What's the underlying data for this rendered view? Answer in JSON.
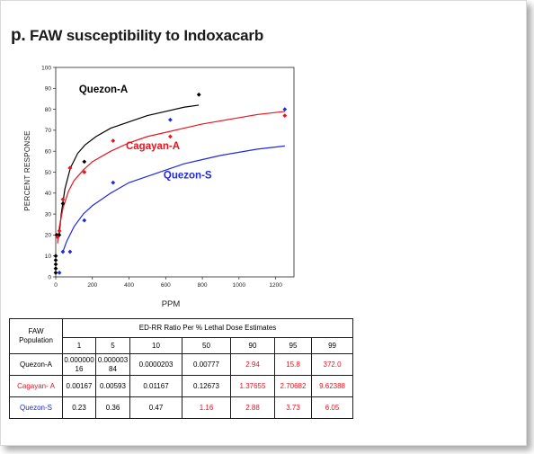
{
  "title": {
    "prefix": "p.",
    "text": "FAW susceptibility to Indoxacarb"
  },
  "colors": {
    "quezon_a": "#000000",
    "cagayan_a": "#e8141e",
    "quezon_s": "#1e2adc"
  },
  "chart_data": {
    "type": "scatter",
    "xlabel": "PPM",
    "ylabel": "PERCENT RESPONSE",
    "xlim": [
      0,
      1300
    ],
    "ylim": [
      0,
      100
    ],
    "xticks": [
      0,
      200,
      400,
      600,
      800,
      1000,
      1200
    ],
    "yticks": [
      0,
      10,
      20,
      30,
      40,
      50,
      60,
      70,
      80,
      90,
      100
    ],
    "grid": false,
    "series": [
      {
        "name": "Quezon-A",
        "color": "#000000",
        "points": [
          {
            "x": 0,
            "y": 2
          },
          {
            "x": 0,
            "y": 4
          },
          {
            "x": 0,
            "y": 6
          },
          {
            "x": 0,
            "y": 8
          },
          {
            "x": 0,
            "y": 10
          },
          {
            "x": 5,
            "y": 20
          },
          {
            "x": 19,
            "y": 20
          },
          {
            "x": 39,
            "y": 35
          },
          {
            "x": 78,
            "y": 52
          },
          {
            "x": 156,
            "y": 55
          },
          {
            "x": 781,
            "y": 87
          }
        ],
        "curve": [
          {
            "x": 19,
            "y": 20
          },
          {
            "x": 30,
            "y": 30
          },
          {
            "x": 50,
            "y": 42
          },
          {
            "x": 80,
            "y": 52
          },
          {
            "x": 120,
            "y": 59
          },
          {
            "x": 160,
            "y": 63
          },
          {
            "x": 220,
            "y": 67
          },
          {
            "x": 300,
            "y": 71
          },
          {
            "x": 400,
            "y": 74
          },
          {
            "x": 500,
            "y": 77
          },
          {
            "x": 600,
            "y": 79
          },
          {
            "x": 700,
            "y": 81
          },
          {
            "x": 781,
            "y": 82
          }
        ]
      },
      {
        "name": "Cagayan-A",
        "color": "#e8141e",
        "points": [
          {
            "x": 10,
            "y": 19
          },
          {
            "x": 20,
            "y": 22
          },
          {
            "x": 39,
            "y": 37
          },
          {
            "x": 78,
            "y": 52
          },
          {
            "x": 156,
            "y": 50
          },
          {
            "x": 313,
            "y": 65
          },
          {
            "x": 625,
            "y": 67
          },
          {
            "x": 1250,
            "y": 77
          }
        ],
        "curve": [
          {
            "x": 10,
            "y": 16
          },
          {
            "x": 20,
            "y": 24
          },
          {
            "x": 40,
            "y": 33
          },
          {
            "x": 70,
            "y": 41
          },
          {
            "x": 100,
            "y": 46
          },
          {
            "x": 150,
            "y": 51
          },
          {
            "x": 200,
            "y": 55
          },
          {
            "x": 300,
            "y": 60
          },
          {
            "x": 400,
            "y": 64
          },
          {
            "x": 500,
            "y": 67
          },
          {
            "x": 600,
            "y": 69
          },
          {
            "x": 700,
            "y": 71
          },
          {
            "x": 800,
            "y": 73
          },
          {
            "x": 900,
            "y": 74.5
          },
          {
            "x": 1000,
            "y": 76
          },
          {
            "x": 1100,
            "y": 77.5
          },
          {
            "x": 1250,
            "y": 79
          }
        ]
      },
      {
        "name": "Quezon-S",
        "color": "#1e2adc",
        "points": [
          {
            "x": 20,
            "y": 2
          },
          {
            "x": 39,
            "y": 12
          },
          {
            "x": 78,
            "y": 12
          },
          {
            "x": 156,
            "y": 27
          },
          {
            "x": 313,
            "y": 45
          },
          {
            "x": 625,
            "y": 75
          },
          {
            "x": 1250,
            "y": 80
          }
        ],
        "curve": [
          {
            "x": 39,
            "y": 12
          },
          {
            "x": 60,
            "y": 17
          },
          {
            "x": 100,
            "y": 24
          },
          {
            "x": 150,
            "y": 30
          },
          {
            "x": 200,
            "y": 34
          },
          {
            "x": 300,
            "y": 40
          },
          {
            "x": 400,
            "y": 45
          },
          {
            "x": 500,
            "y": 48
          },
          {
            "x": 600,
            "y": 51
          },
          {
            "x": 700,
            "y": 54
          },
          {
            "x": 800,
            "y": 56
          },
          {
            "x": 900,
            "y": 58
          },
          {
            "x": 1000,
            "y": 59.5
          },
          {
            "x": 1100,
            "y": 61
          },
          {
            "x": 1250,
            "y": 62.5
          }
        ]
      }
    ],
    "annotations": [
      {
        "text": "Quezon-A",
        "x": 260,
        "y": 88,
        "color": "#000000"
      },
      {
        "text": "Cagayan-A",
        "x": 530,
        "y": 61,
        "color": "#e8141e"
      },
      {
        "text": "Quezon-S",
        "x": 720,
        "y": 47,
        "color": "#1e2adc"
      }
    ]
  },
  "table": {
    "population_header": "FAW Population",
    "group_header": "ED-RR  Ratio Per % Lethal Dose Estimates",
    "columns": [
      "1",
      "5",
      "10",
      "50",
      "90",
      "95",
      "99"
    ],
    "rows": [
      {
        "population": "Quezon-A",
        "pop_color": "#000000",
        "values": [
          "0.00000016",
          "0.00000384",
          "0.0000203",
          "0.00777",
          "2.94",
          "15.8",
          "372.0"
        ],
        "value_colors": [
          "#000000",
          "#000000",
          "#000000",
          "#000000",
          "#e8141e",
          "#e8141e",
          "#e8141e"
        ]
      },
      {
        "population": "Cagayan- A",
        "pop_color": "#e8141e",
        "values": [
          "0.00167",
          "0.00593",
          "0.01167",
          "0.12673",
          "1.37655",
          "2.70682",
          "9.62388"
        ],
        "value_colors": [
          "#000000",
          "#000000",
          "#000000",
          "#000000",
          "#e8141e",
          "#e8141e",
          "#e8141e"
        ]
      },
      {
        "population": "Quezon-S",
        "pop_color": "#1e2adc",
        "values": [
          "0.23",
          "0.36",
          "0.47",
          "1.16",
          "2.88",
          "3.73",
          "6.05"
        ],
        "value_colors": [
          "#000000",
          "#000000",
          "#000000",
          "#e8141e",
          "#e8141e",
          "#e8141e",
          "#e8141e"
        ]
      }
    ]
  }
}
